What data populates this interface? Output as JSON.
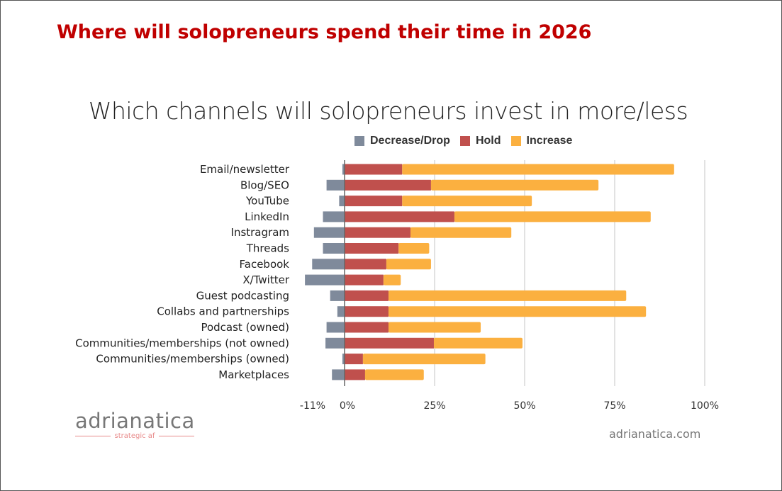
{
  "headline": "Where will solopreneurs spend their time in 2026",
  "footer": {
    "logo_text": "adrianatica",
    "logo_tagline": "strategic af",
    "site": "adrianatica.com"
  },
  "chart_data": {
    "type": "bar",
    "orientation": "horizontal",
    "stacked": true,
    "title": "Which channels will solopreneurs invest in more/less",
    "categories": [
      "Email/newsletter",
      "Blog/SEO",
      "YouTube",
      "LinkedIn",
      "Instragram",
      "Threads",
      "Facebook",
      "X/Twitter",
      "Guest podcasting",
      "Collabs and partnerships",
      "Podcast (owned)",
      "Communities/memberships (not owned)",
      "Communities/memberships (owned)",
      "Marketplaces"
    ],
    "series": [
      {
        "name": "Decrease/Drop",
        "color": "#7f8a9b",
        "values": [
          -0.6,
          -5,
          -1.5,
          -6,
          -8.5,
          -6,
          -9,
          -11,
          -4,
          -2,
          -5,
          -5.3,
          -0.6,
          -3.5
        ]
      },
      {
        "name": "Hold",
        "color": "#c0504d",
        "values": [
          16,
          24,
          16,
          30.5,
          18.3,
          15,
          11.6,
          10.8,
          12.2,
          12.2,
          12.2,
          24.8,
          5.1,
          5.7
        ]
      },
      {
        "name": "Increase",
        "color": "#fbb040",
        "values": [
          75.5,
          46.5,
          36,
          54.5,
          28,
          8.5,
          12.4,
          4.8,
          66,
          71.5,
          25.6,
          24.6,
          34,
          16.3
        ]
      }
    ],
    "xticks": [
      "-11%",
      "0%",
      "25%",
      "50%",
      "75%",
      "100%"
    ],
    "xtick_values": [
      -11,
      0,
      25,
      50,
      75,
      100
    ],
    "xlim": [
      -11,
      100
    ],
    "grid": "vertical",
    "legend": "top"
  }
}
